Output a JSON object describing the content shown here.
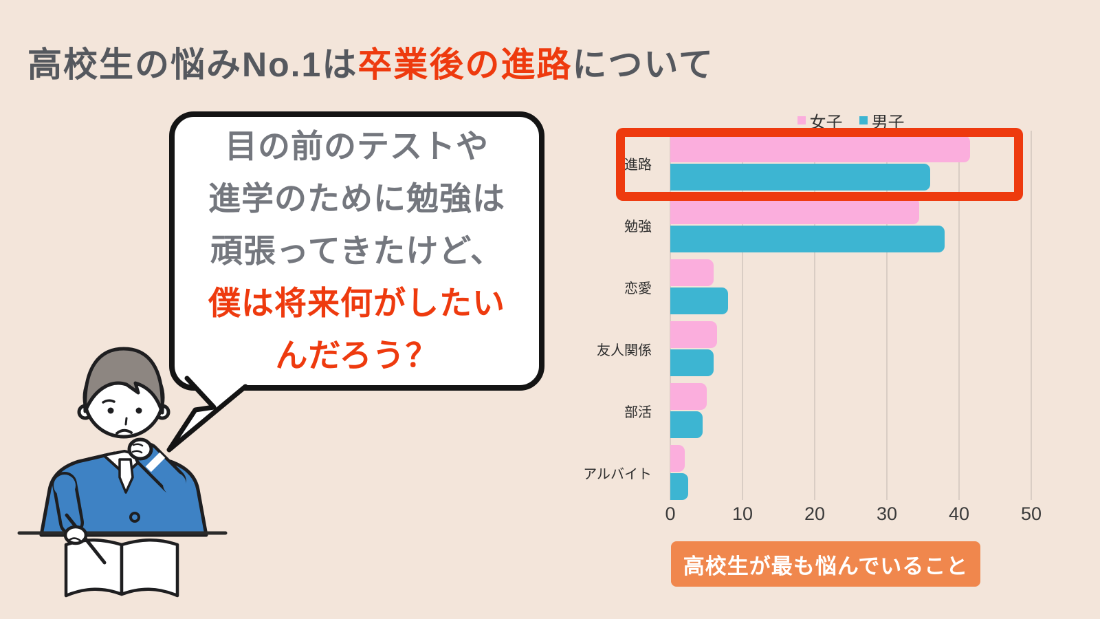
{
  "colors": {
    "background": "#F3E5DA",
    "accent": "#EE3A0E",
    "title_text": "#55585E",
    "bubble_gray": "#74777E",
    "badge_background": "#F0874D",
    "girls_pink": "#FBAEDD",
    "boys_teal": "#3DB5D2",
    "gridline": "#D9CDC4",
    "jacket_blue": "#3E82C4"
  },
  "title": {
    "prefix": "高校生の悩みNo.1は",
    "highlight": "卒業後の進路",
    "suffix": "について"
  },
  "speech_bubble": {
    "lines": [
      {
        "text": "目の前のテストや",
        "emphasis": false
      },
      {
        "text": "進学のために勉強は",
        "emphasis": false
      },
      {
        "text": "頑張ってきたけど、",
        "emphasis": false
      },
      {
        "text": "僕は将来何がしたい",
        "emphasis": true
      },
      {
        "text": "んだろう？",
        "emphasis": true
      }
    ]
  },
  "chart_data": {
    "type": "bar",
    "orientation": "horizontal",
    "title": "",
    "categories": [
      "進路",
      "勉強",
      "恋愛",
      "友人関係",
      "部活",
      "アルバイト"
    ],
    "series": [
      {
        "name": "女子",
        "color": "#FBAEDD",
        "values": [
          41.5,
          34.5,
          6,
          6.5,
          5,
          2
        ]
      },
      {
        "name": "男子",
        "color": "#3DB5D2",
        "values": [
          36,
          38,
          8,
          6,
          4.5,
          2.5
        ]
      }
    ],
    "xlim": [
      0,
      50
    ],
    "xticks": [
      0,
      10,
      20,
      30,
      40,
      50
    ],
    "grid": true,
    "legend_position": "top",
    "highlighted_category": "進路"
  },
  "caption_badge": {
    "label": "高校生が最も悩んでいること"
  }
}
